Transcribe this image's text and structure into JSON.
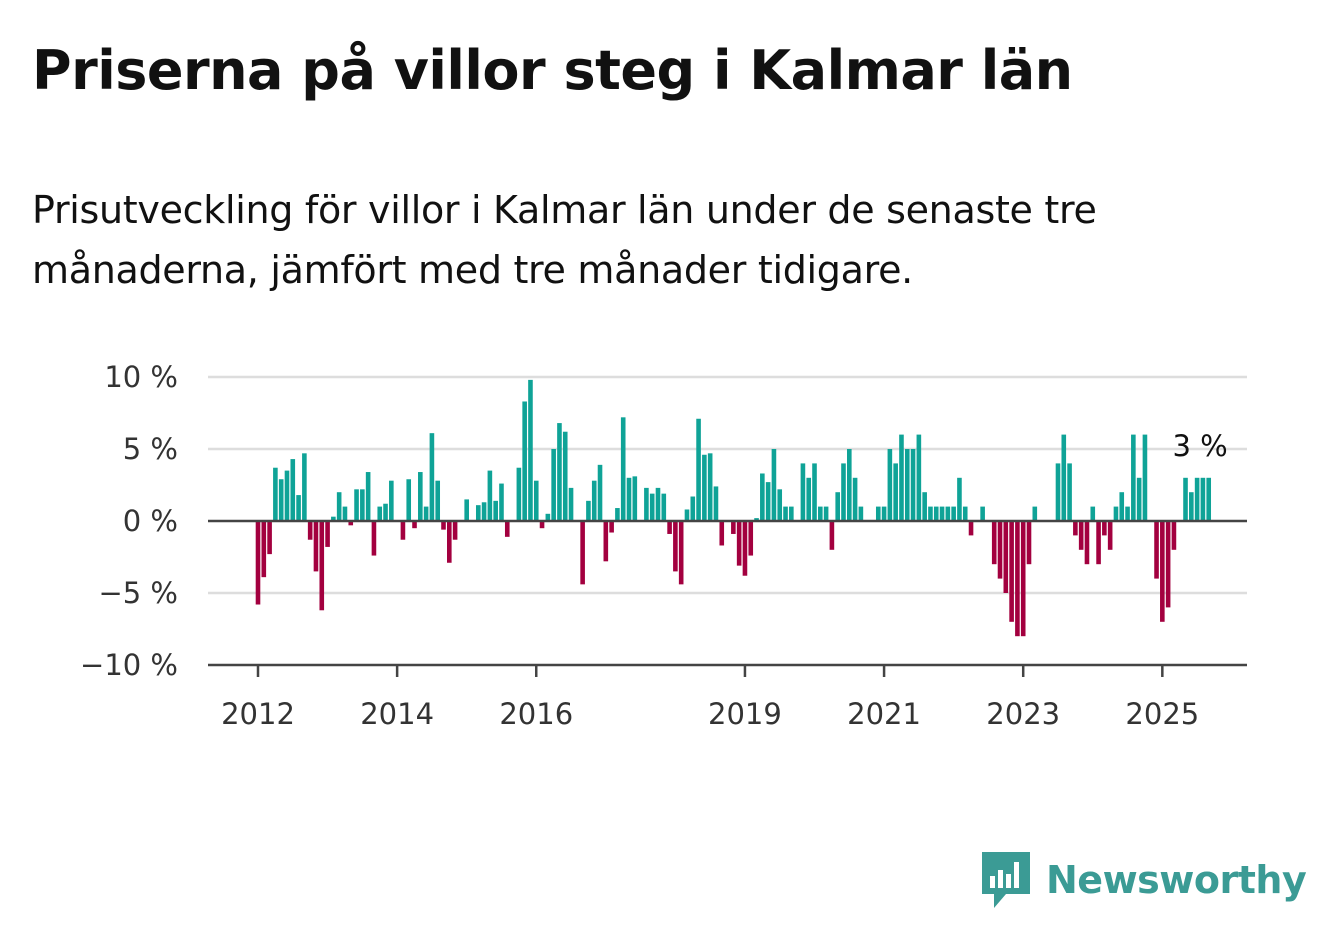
{
  "title": "Priserna på villor steg i Kalmar län",
  "subtitle": "Prisutveckling för villor i Kalmar län under de senaste tre månaderna, jämfört med tre månader tidigare.",
  "brand": {
    "name": "Newsworthy",
    "icon": "newsworthy-logo-icon",
    "color": "#3b9b95"
  },
  "chart_data": {
    "type": "bar",
    "title": "",
    "xlabel": "",
    "ylabel": "",
    "ylim": [
      -10,
      10
    ],
    "y_ticks": [
      {
        "value": 10,
        "label": "10 %"
      },
      {
        "value": 5,
        "label": "5 %"
      },
      {
        "value": 0,
        "label": "0 %"
      },
      {
        "value": -5,
        "label": "−5 %"
      },
      {
        "value": -10,
        "label": "−10 %"
      }
    ],
    "x_ticks": [
      {
        "month": "2012-01",
        "label": "2012"
      },
      {
        "month": "2014-01",
        "label": "2014"
      },
      {
        "month": "2016-01",
        "label": "2016"
      },
      {
        "month": "2019-01",
        "label": "2019"
      },
      {
        "month": "2021-01",
        "label": "2021"
      },
      {
        "month": "2023-01",
        "label": "2023"
      },
      {
        "month": "2025-01",
        "label": "2025"
      }
    ],
    "grid": true,
    "colors": {
      "positive": "#0fa397",
      "negative": "#a3003f"
    },
    "start_month": "2012-01",
    "values": [
      -5.8,
      -3.9,
      -2.3,
      3.7,
      2.9,
      3.5,
      4.3,
      1.8,
      4.7,
      -1.3,
      -3.5,
      -6.2,
      -1.8,
      0.3,
      2.0,
      1.0,
      -0.3,
      2.2,
      2.2,
      3.4,
      -2.4,
      1.0,
      1.2,
      2.8,
      0.0,
      -1.3,
      2.9,
      -0.5,
      3.4,
      1.0,
      6.1,
      2.8,
      -0.6,
      -2.9,
      -1.3,
      0.0,
      1.5,
      0.0,
      1.1,
      1.3,
      3.5,
      1.4,
      2.6,
      -1.1,
      0.0,
      3.7,
      8.3,
      9.8,
      2.8,
      -0.5,
      0.5,
      5.0,
      6.8,
      6.2,
      2.3,
      0.0,
      -4.4,
      1.4,
      2.8,
      3.9,
      -2.8,
      -0.8,
      0.9,
      7.2,
      3.0,
      3.1,
      0.0,
      2.3,
      1.9,
      2.3,
      1.9,
      -0.9,
      -3.5,
      -4.4,
      0.8,
      1.7,
      7.1,
      4.6,
      4.7,
      2.4,
      -1.7,
      0.0,
      -0.9,
      -3.1,
      -3.8,
      -2.4,
      0.2,
      3.3,
      2.7,
      5.0,
      2.2,
      1.0,
      1.0,
      0.0,
      4.0,
      3.0,
      4.0,
      1.0,
      1.0,
      -2.0,
      2.0,
      4.0,
      5.0,
      3.0,
      1.0,
      0.0,
      0.0,
      1.0,
      1.0,
      5.0,
      4.0,
      6.0,
      5.0,
      5.0,
      6.0,
      2.0,
      1.0,
      1.0,
      1.0,
      1.0,
      1.0,
      3.0,
      1.0,
      -1.0,
      0.0,
      1.0,
      0.0,
      -3.0,
      -4.0,
      -5.0,
      -7.0,
      -8.0,
      -8.0,
      -3.0,
      1.0,
      0.0,
      0.0,
      0.0,
      4.0,
      6.0,
      4.0,
      -1.0,
      -2.0,
      -3.0,
      1.0,
      -3.0,
      -1.0,
      -2.0,
      1.0,
      2.0,
      1.0,
      6.0,
      3.0,
      6.0,
      0.0,
      -4.0,
      -7.0,
      -6.0,
      -2.0,
      0.0,
      3.0,
      2.0,
      3.0,
      3.0,
      3.0
    ],
    "annotations": [
      {
        "month": "2025-07",
        "label": "3 %"
      }
    ]
  }
}
